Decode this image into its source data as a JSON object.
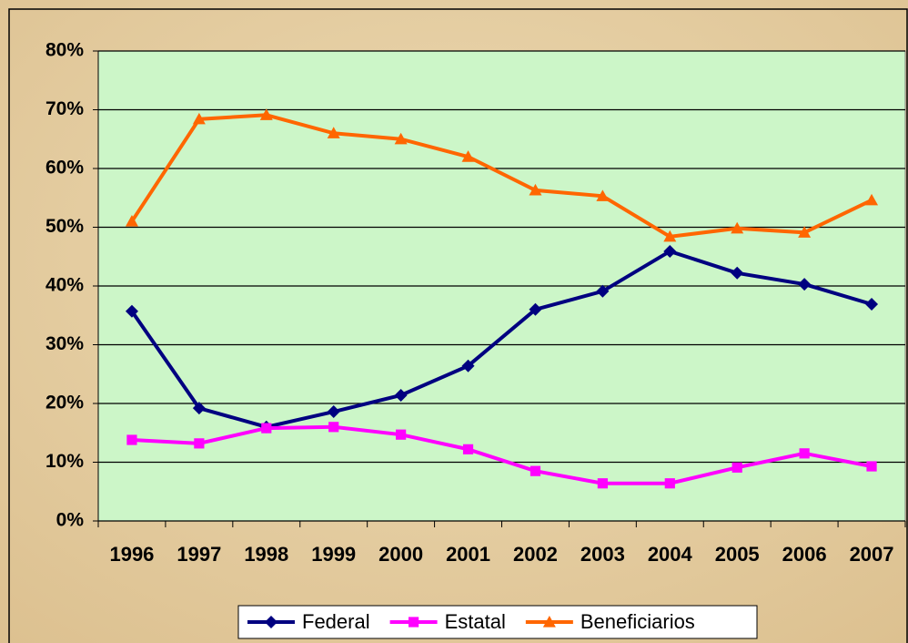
{
  "chart_data": {
    "type": "line",
    "categories": [
      "1996",
      "1997",
      "1998",
      "1999",
      "2000",
      "2001",
      "2002",
      "2003",
      "2004",
      "2005",
      "2006",
      "2007"
    ],
    "series": [
      {
        "name": "Federal",
        "color": "#000080",
        "marker": "diamond",
        "values": [
          35.7,
          19.2,
          16.0,
          18.6,
          21.4,
          26.4,
          36.0,
          39.1,
          45.9,
          42.2,
          40.3,
          36.9
        ]
      },
      {
        "name": "Estatal",
        "color": "#ff00ff",
        "marker": "square",
        "values": [
          13.8,
          13.2,
          15.8,
          16.0,
          14.7,
          12.2,
          8.5,
          6.4,
          6.4,
          9.1,
          11.5,
          9.3
        ]
      },
      {
        "name": "Beneficiarios",
        "color": "#ff6600",
        "marker": "triangle",
        "values": [
          51.0,
          68.4,
          69.1,
          66.0,
          65.0,
          62.0,
          56.3,
          55.3,
          48.4,
          49.8,
          49.1,
          54.6
        ]
      }
    ],
    "ylim": [
      0,
      80
    ],
    "yticks": [
      {
        "value": 0,
        "label": "0%"
      },
      {
        "value": 10,
        "label": "10%"
      },
      {
        "value": 20,
        "label": "20%"
      },
      {
        "value": 30,
        "label": "30%"
      },
      {
        "value": 40,
        "label": "40%"
      },
      {
        "value": 50,
        "label": "50%"
      },
      {
        "value": 60,
        "label": "60%"
      },
      {
        "value": 70,
        "label": "70%"
      },
      {
        "value": 80,
        "label": "80%"
      }
    ],
    "grid": true,
    "legend": "bottom"
  }
}
